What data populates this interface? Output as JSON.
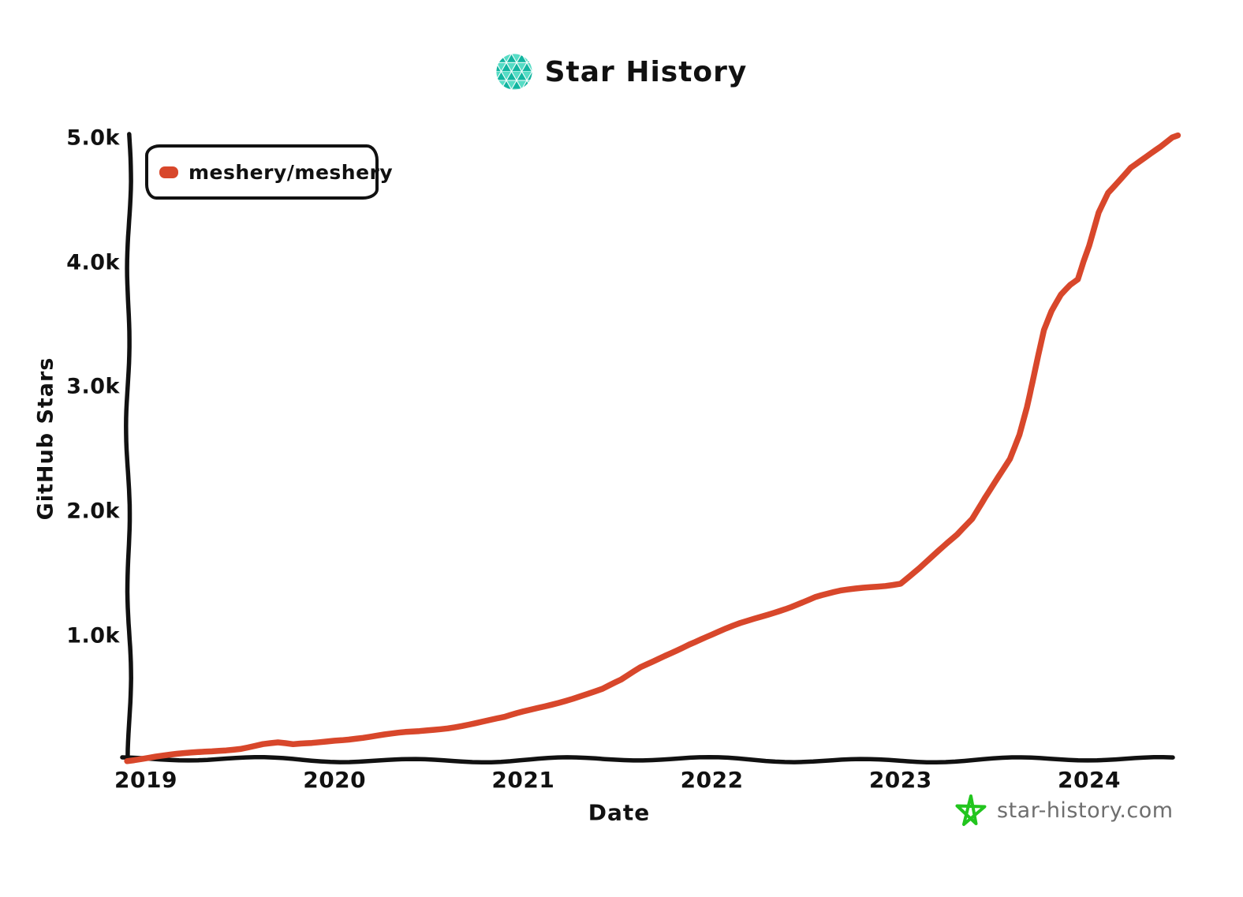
{
  "header": {
    "title": "Star History"
  },
  "legend": {
    "items": [
      {
        "label": "meshery/meshery",
        "color": "#D8472B"
      }
    ]
  },
  "axes": {
    "y_label": "GitHub Stars",
    "x_label": "Date",
    "y_ticks": [
      {
        "label": "5.0k",
        "value": 5000
      },
      {
        "label": "4.0k",
        "value": 4000
      },
      {
        "label": "3.0k",
        "value": 3000
      },
      {
        "label": "2.0k",
        "value": 2000
      },
      {
        "label": "1.0k",
        "value": 1000
      }
    ],
    "x_ticks": [
      {
        "label": "2019",
        "value": 2019
      },
      {
        "label": "2020",
        "value": 2020
      },
      {
        "label": "2021",
        "value": 2021
      },
      {
        "label": "2022",
        "value": 2022
      },
      {
        "label": "2023",
        "value": 2023
      },
      {
        "label": "2024",
        "value": 2024
      }
    ]
  },
  "footer": {
    "brand": "star-history.com"
  },
  "colors": {
    "line": "#D8472B",
    "axis": "#111111",
    "text": "#111111",
    "logo_teal_dark": "#12B5A0",
    "logo_teal_light": "#56DCC5",
    "star_green": "#22C51E",
    "footer_text": "#6E6E6E",
    "background": "#FFFFFF"
  },
  "chart_data": {
    "type": "line",
    "title": "Star History",
    "xlabel": "Date",
    "ylabel": "GitHub Stars",
    "xlim": [
      2018.88,
      2024.5
    ],
    "ylim": [
      0,
      5000
    ],
    "grid": false,
    "legend_position": "top-left",
    "style": "hand-drawn-xkcd",
    "x_unit": "year",
    "y_unit": "stars",
    "series": [
      {
        "name": "meshery/meshery",
        "color": "#D8472B",
        "points": [
          [
            2018.9,
            5
          ],
          [
            2019.05,
            30
          ],
          [
            2019.2,
            50
          ],
          [
            2019.35,
            72
          ],
          [
            2019.5,
            95
          ],
          [
            2019.62,
            125
          ],
          [
            2019.7,
            132
          ],
          [
            2019.78,
            115
          ],
          [
            2019.88,
            130
          ],
          [
            2020.0,
            158
          ],
          [
            2020.15,
            180
          ],
          [
            2020.3,
            205
          ],
          [
            2020.45,
            230
          ],
          [
            2020.6,
            265
          ],
          [
            2020.75,
            305
          ],
          [
            2020.9,
            345
          ],
          [
            2021.0,
            390
          ],
          [
            2021.15,
            455
          ],
          [
            2021.3,
            520
          ],
          [
            2021.42,
            570
          ],
          [
            2021.52,
            640
          ],
          [
            2021.62,
            740
          ],
          [
            2021.75,
            840
          ],
          [
            2021.88,
            930
          ],
          [
            2022.0,
            1000
          ],
          [
            2022.15,
            1090
          ],
          [
            2022.3,
            1170
          ],
          [
            2022.42,
            1235
          ],
          [
            2022.55,
            1310
          ],
          [
            2022.68,
            1355
          ],
          [
            2022.8,
            1385
          ],
          [
            2022.92,
            1410
          ],
          [
            2023.0,
            1430
          ],
          [
            2023.1,
            1550
          ],
          [
            2023.2,
            1680
          ],
          [
            2023.3,
            1810
          ],
          [
            2023.38,
            1940
          ],
          [
            2023.45,
            2120
          ],
          [
            2023.52,
            2290
          ],
          [
            2023.58,
            2430
          ],
          [
            2023.63,
            2620
          ],
          [
            2023.67,
            2840
          ],
          [
            2023.7,
            3040
          ],
          [
            2023.73,
            3250
          ],
          [
            2023.76,
            3450
          ],
          [
            2023.8,
            3600
          ],
          [
            2023.85,
            3730
          ],
          [
            2023.9,
            3810
          ],
          [
            2023.94,
            3855
          ],
          [
            2023.97,
            4000
          ],
          [
            2024.0,
            4130
          ],
          [
            2024.05,
            4400
          ],
          [
            2024.1,
            4560
          ],
          [
            2024.16,
            4660
          ],
          [
            2024.22,
            4760
          ],
          [
            2024.3,
            4840
          ],
          [
            2024.38,
            4920
          ],
          [
            2024.44,
            4990
          ],
          [
            2024.47,
            5020
          ]
        ]
      }
    ]
  }
}
